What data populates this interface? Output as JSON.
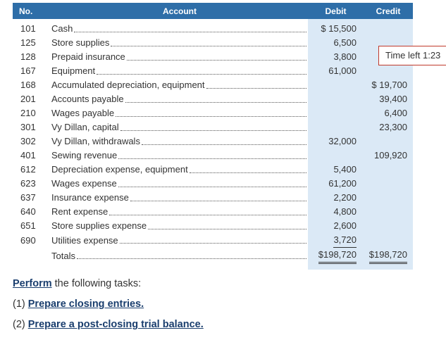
{
  "table": {
    "headers": {
      "no": "No.",
      "account": "Account",
      "debit": "Debit",
      "credit": "Credit"
    },
    "rows": [
      {
        "no": "101",
        "account": "Cash",
        "debit": "$ 15,500",
        "credit": ""
      },
      {
        "no": "125",
        "account": "Store supplies",
        "debit": "6,500",
        "credit": ""
      },
      {
        "no": "128",
        "account": "Prepaid insurance",
        "debit": "3,800",
        "credit": ""
      },
      {
        "no": "167",
        "account": "Equipment",
        "debit": "61,000",
        "credit": ""
      },
      {
        "no": "168",
        "account": "Accumulated depreciation, equipment",
        "debit": "",
        "credit": "$ 19,700"
      },
      {
        "no": "201",
        "account": "Accounts payable",
        "debit": "",
        "credit": "39,400"
      },
      {
        "no": "210",
        "account": "Wages payable",
        "debit": "",
        "credit": "6,400"
      },
      {
        "no": "301",
        "account": "Vy Dillan, capital",
        "debit": "",
        "credit": "23,300"
      },
      {
        "no": "302",
        "account": "Vy Dillan, withdrawals",
        "debit": "32,000",
        "credit": ""
      },
      {
        "no": "401",
        "account": "Sewing revenue",
        "debit": "",
        "credit": "109,920"
      },
      {
        "no": "612",
        "account": "Depreciation expense, equipment",
        "debit": "5,400",
        "credit": ""
      },
      {
        "no": "623",
        "account": "Wages expense",
        "debit": "61,200",
        "credit": ""
      },
      {
        "no": "637",
        "account": "Insurance expense",
        "debit": "2,200",
        "credit": ""
      },
      {
        "no": "640",
        "account": "Rent expense",
        "debit": "4,800",
        "credit": ""
      },
      {
        "no": "651",
        "account": "Store supplies expense",
        "debit": "2,600",
        "credit": ""
      },
      {
        "no": "690",
        "account": "Utilities expense",
        "debit": "3,720",
        "credit": ""
      }
    ],
    "totals": {
      "label": "Totals",
      "debit": "$198,720",
      "credit": "$198,720"
    }
  },
  "timer": {
    "text": "Time left 1:23"
  },
  "tasks": {
    "intro_link": "Perform",
    "intro_rest": " the following tasks:",
    "task1_num": "(1) ",
    "task1_link": "Prepare closing entries.",
    "task2_num": "(2) ",
    "task2_link": "Prepare a post-closing trial balance."
  },
  "colors": {
    "header_bg": "#2e6ea8",
    "amount_col_bg": "#dbe9f6",
    "link": "#1a3e6e",
    "timer_border": "#c0392b"
  }
}
